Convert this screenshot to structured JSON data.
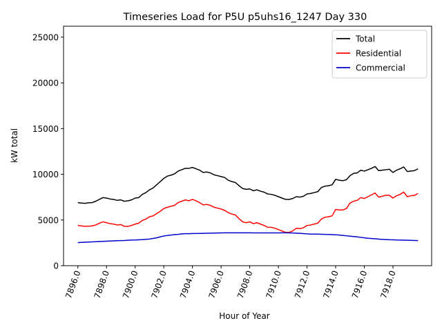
{
  "chart_data": {
    "type": "line",
    "title": "Timeseries Load for P5U p5uhs16_1247  Day 330",
    "xlabel": "Hour of Year",
    "ylabel": "kW total",
    "xlim": [
      7895.0,
      7920.7
    ],
    "ylim": [
      0,
      26200
    ],
    "xticks": [
      7896,
      7898,
      7900,
      7902,
      7904,
      7906,
      7908,
      7910,
      7912,
      7914,
      7916,
      7918
    ],
    "xtick_labels": [
      "7896.0",
      "7898.0",
      "7900.0",
      "7902.0",
      "7904.0",
      "7906.0",
      "7908.0",
      "7910.0",
      "7912.0",
      "7914.0",
      "7916.0",
      "7918.0"
    ],
    "yticks": [
      0,
      5000,
      10000,
      15000,
      20000,
      25000
    ],
    "ytick_labels": [
      "0",
      "5000",
      "10000",
      "15000",
      "20000",
      "25000"
    ],
    "grid": false,
    "legend_position": "top-right",
    "x_start": 7896.0,
    "x_step": 0.25,
    "series": [
      {
        "name": "Total",
        "color": "#000000",
        "values": [
          6900,
          6850,
          6820,
          6880,
          6900,
          7050,
          7250,
          7450,
          7400,
          7300,
          7250,
          7150,
          7200,
          7050,
          7100,
          7200,
          7400,
          7450,
          7800,
          8000,
          8300,
          8500,
          8850,
          9200,
          9550,
          9800,
          9900,
          10050,
          10350,
          10500,
          10650,
          10650,
          10750,
          10600,
          10450,
          10200,
          10250,
          10150,
          9950,
          9850,
          9750,
          9650,
          9350,
          9200,
          9100,
          8750,
          8450,
          8350,
          8400,
          8200,
          8300,
          8150,
          8050,
          7850,
          7800,
          7700,
          7550,
          7400,
          7250,
          7250,
          7350,
          7550,
          7500,
          7600,
          7850,
          7900,
          8000,
          8100,
          8550,
          8700,
          8750,
          8850,
          9450,
          9350,
          9300,
          9400,
          9850,
          10100,
          10150,
          10450,
          10350,
          10500,
          10650,
          10850,
          10400,
          10450,
          10500,
          10550,
          10200,
          10450,
          10600,
          10800,
          10300,
          10350,
          10400,
          10600
        ]
      },
      {
        "name": "Residential",
        "color": "#ff0000",
        "values": [
          4400,
          4350,
          4300,
          4320,
          4350,
          4450,
          4650,
          4800,
          4700,
          4600,
          4550,
          4450,
          4500,
          4300,
          4300,
          4400,
          4550,
          4650,
          4950,
          5100,
          5350,
          5450,
          5700,
          5950,
          6250,
          6400,
          6500,
          6600,
          6900,
          7050,
          7200,
          7100,
          7250,
          7100,
          6900,
          6650,
          6700,
          6600,
          6400,
          6300,
          6200,
          6050,
          5800,
          5650,
          5550,
          5150,
          4800,
          4700,
          4800,
          4600,
          4700,
          4550,
          4400,
          4200,
          4200,
          4100,
          3950,
          3800,
          3650,
          3650,
          3800,
          4100,
          4050,
          4150,
          4400,
          4450,
          4550,
          4650,
          5100,
          5300,
          5350,
          5450,
          6150,
          6100,
          6100,
          6250,
          6850,
          7050,
          7150,
          7450,
          7350,
          7550,
          7750,
          7950,
          7500,
          7600,
          7700,
          7700,
          7400,
          7650,
          7800,
          8050,
          7550,
          7650,
          7700,
          7900
        ]
      },
      {
        "name": "Commercial",
        "color": "#0000cc",
        "values": [
          2520,
          2550,
          2570,
          2590,
          2600,
          2620,
          2640,
          2660,
          2680,
          2700,
          2720,
          2740,
          2750,
          2760,
          2780,
          2800,
          2810,
          2830,
          2850,
          2880,
          2920,
          2980,
          3050,
          3150,
          3250,
          3300,
          3350,
          3400,
          3430,
          3470,
          3500,
          3500,
          3520,
          3520,
          3530,
          3540,
          3550,
          3560,
          3570,
          3580,
          3590,
          3600,
          3600,
          3600,
          3600,
          3600,
          3600,
          3600,
          3600,
          3590,
          3590,
          3590,
          3590,
          3590,
          3590,
          3590,
          3590,
          3600,
          3600,
          3590,
          3580,
          3560,
          3540,
          3510,
          3480,
          3460,
          3450,
          3450,
          3440,
          3430,
          3420,
          3400,
          3380,
          3350,
          3310,
          3270,
          3230,
          3190,
          3150,
          3100,
          3050,
          3000,
          2970,
          2940,
          2910,
          2880,
          2860,
          2840,
          2830,
          2810,
          2800,
          2790,
          2780,
          2770,
          2760,
          2750
        ]
      }
    ]
  }
}
